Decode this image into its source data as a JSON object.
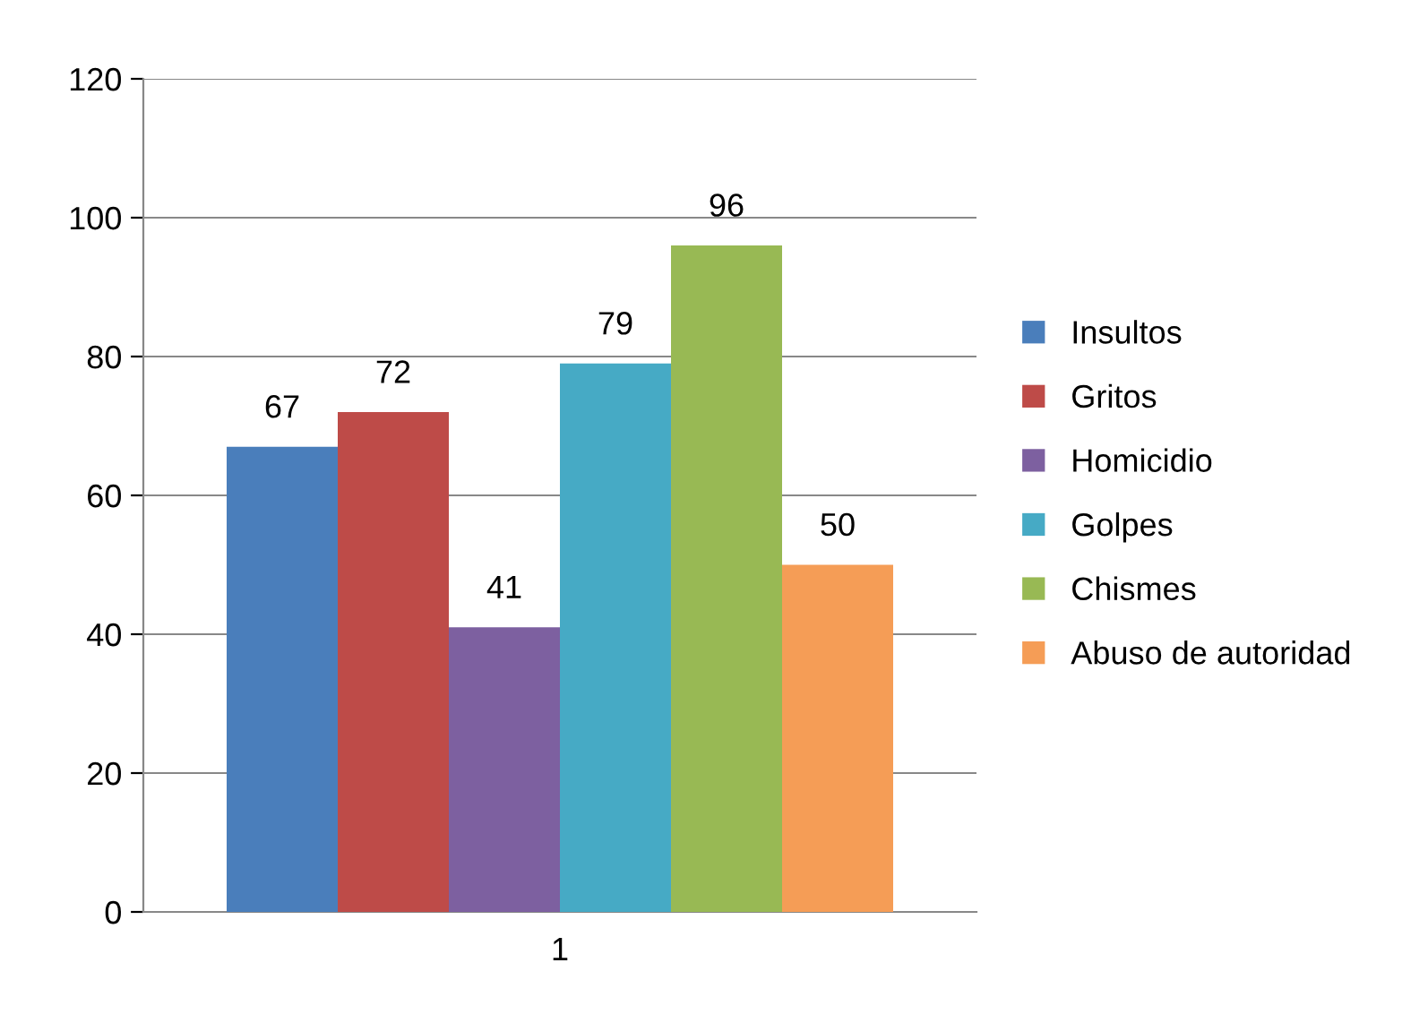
{
  "chart_data": {
    "type": "bar",
    "categories": [
      "1"
    ],
    "series": [
      {
        "name": "Insultos",
        "color": "#4a7ebb",
        "values": [
          67
        ]
      },
      {
        "name": "Gritos",
        "color": "#be4b48",
        "values": [
          72
        ]
      },
      {
        "name": "Homicidio",
        "color": "#7d60a0",
        "values": [
          41
        ]
      },
      {
        "name": "Golpes",
        "color": "#46aac5",
        "values": [
          79
        ]
      },
      {
        "name": "Chismes",
        "color": "#98b954",
        "values": [
          96
        ]
      },
      {
        "name": "Abuso de autoridad",
        "color": "#f59d56",
        "values": [
          50
        ]
      }
    ],
    "ylim": [
      0,
      120
    ],
    "yticks": [
      0,
      20,
      40,
      60,
      80,
      100,
      120
    ],
    "grid": "y",
    "legend": "right",
    "data_labels": true
  }
}
